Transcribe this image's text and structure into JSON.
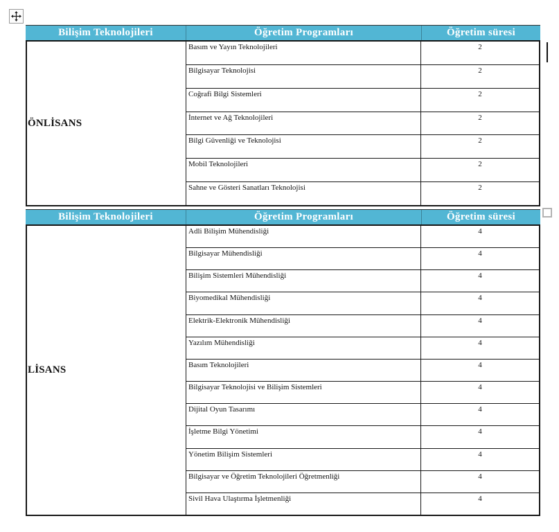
{
  "accent_color": "#52B6D4",
  "header_text_color": "#FFFFFF",
  "icons": {
    "move_handle": "move-icon",
    "resize_handle": "table-resize-handle",
    "text_cursor": "text-caret"
  },
  "tables": [
    {
      "headers": [
        "Bilişim Teknolojileri",
        "Öğretim Programları",
        "Öğretim süresi"
      ],
      "level": "ÖNLİSANS",
      "rows": [
        {
          "program": "Basım ve Yayın Teknolojileri",
          "duration": "2"
        },
        {
          "program": "Bilgisayar Teknolojisi",
          "duration": "2"
        },
        {
          "program": "Coğrafi Bilgi Sistemleri",
          "duration": "2"
        },
        {
          "program": "İnternet ve Ağ Teknolojileri",
          "duration": "2"
        },
        {
          "program": "Bilgi Güvenliği ve Teknolojisi",
          "duration": "2"
        },
        {
          "program": "Mobil Teknolojileri",
          "duration": "2"
        },
        {
          "program": "Sahne ve Gösteri Sanatları Teknolojisi",
          "duration": "2"
        }
      ]
    },
    {
      "headers": [
        "Bilişim Teknolojileri",
        "Öğretim Programları",
        "Öğretim süresi"
      ],
      "level": "LİSANS",
      "rows": [
        {
          "program": "Adli Bilişim Mühendisliği",
          "duration": "4"
        },
        {
          "program": "Bilgisayar Mühendisliği",
          "duration": "4"
        },
        {
          "program": "Bilişim Sistemleri Mühendisliği",
          "duration": "4"
        },
        {
          "program": "Biyomedikal Mühendisliği",
          "duration": "4"
        },
        {
          "program": "Elektrik-Elektronik Mühendisliği",
          "duration": "4"
        },
        {
          "program": "Yazılım Mühendisliği",
          "duration": "4"
        },
        {
          "program": "Basım Teknolojileri",
          "duration": "4"
        },
        {
          "program": "Bilgisayar Teknolojisi ve Bilişim Sistemleri",
          "duration": "4"
        },
        {
          "program": "Dijital Oyun Tasarımı",
          "duration": "4"
        },
        {
          "program": "İşletme Bilgi Yönetimi",
          "duration": "4"
        },
        {
          "program": "Yönetim Bilişim Sistemleri",
          "duration": "4"
        },
        {
          "program": "Bilgisayar ve Öğretim Teknolojileri Öğretmenliği",
          "duration": "4"
        },
        {
          "program": "Sivil Hava Ulaştırma İşletmenliği",
          "duration": "4"
        }
      ]
    }
  ]
}
